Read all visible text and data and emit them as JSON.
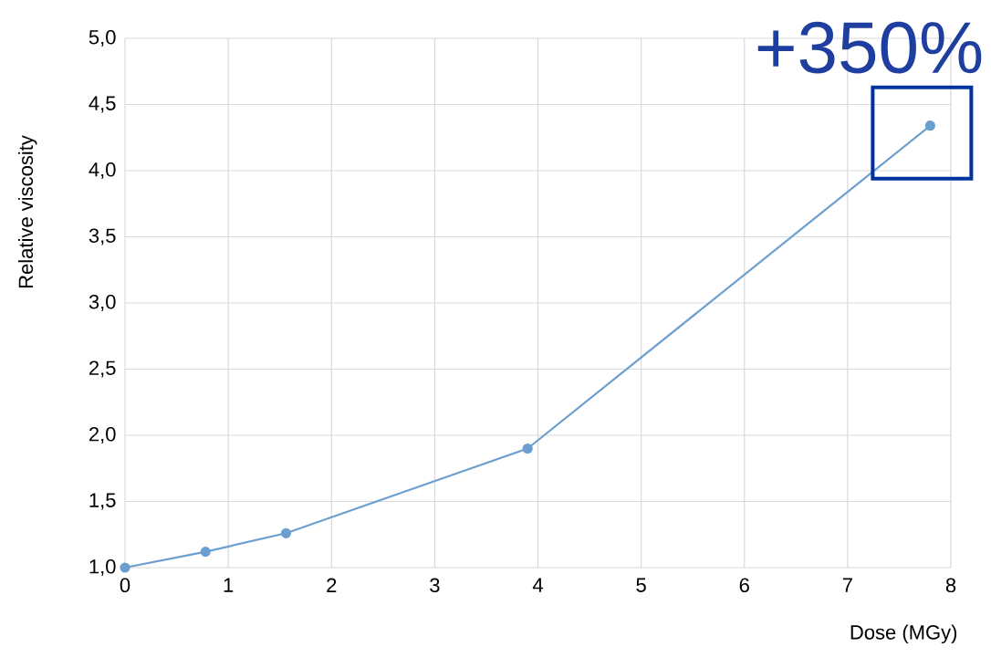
{
  "chart_data": {
    "type": "line",
    "xlabel": "Dose (MGy)",
    "ylabel": "Relative viscosity",
    "x": [
      0,
      0.78,
      1.56,
      3.9,
      7.8
    ],
    "series": [
      {
        "color": "#6a9fcf",
        "values": [
          1.0,
          1.12,
          1.26,
          1.9,
          4.34
        ]
      }
    ],
    "xlim": [
      0,
      8
    ],
    "ylim": [
      1,
      5
    ],
    "xticks": [
      0,
      1,
      2,
      3,
      4,
      5,
      6,
      7,
      8
    ],
    "yticks": [
      {
        "value": 1,
        "label": "1,0"
      },
      {
        "value": 1.5,
        "label": "1,5"
      },
      {
        "value": 2,
        "label": "2,0"
      },
      {
        "value": 2.5,
        "label": "2,5"
      },
      {
        "value": 3,
        "label": "3,0"
      },
      {
        "value": 3.5,
        "label": "3,5"
      },
      {
        "value": 4,
        "label": "4,0"
      },
      {
        "value": 4.5,
        "label": "4,5"
      },
      {
        "value": 5,
        "label": "5,0"
      }
    ],
    "grid": true,
    "marker": "circle",
    "line_style": "solid",
    "annotations": [
      {
        "text": "+350%",
        "x": 7.8,
        "y": 4.34
      }
    ]
  }
}
